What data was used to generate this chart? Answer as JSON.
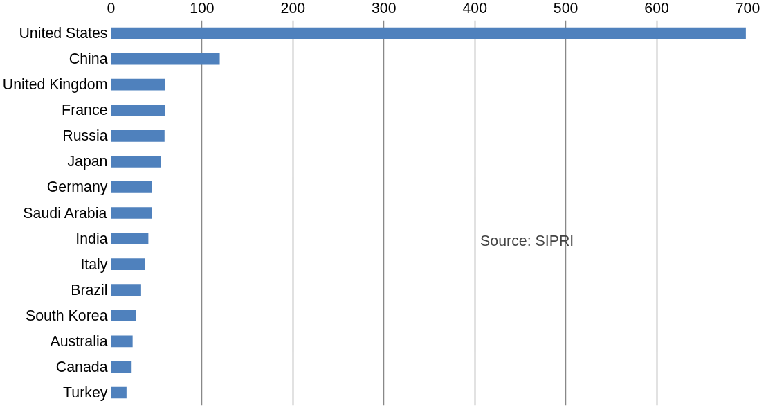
{
  "chart_data": {
    "type": "bar",
    "orientation": "horizontal",
    "categories": [
      "United States",
      "China",
      "United Kingdom",
      "France",
      "Russia",
      "Japan",
      "Germany",
      "Saudi Arabia",
      "India",
      "Italy",
      "Brazil",
      "South Korea",
      "Australia",
      "Canada",
      "Turkey"
    ],
    "values": [
      698,
      119.5,
      59.6,
      59.3,
      58.8,
      54.5,
      45,
      45,
      41,
      37,
      33,
      27.4,
      23.7,
      22.6,
      17
    ],
    "color": "#4f81bd",
    "xlim": [
      0,
      700
    ],
    "xticks": [
      0,
      100,
      200,
      300,
      400,
      500,
      600,
      700
    ],
    "grid": "x",
    "annotations": [
      "Source: SIPRI"
    ]
  }
}
